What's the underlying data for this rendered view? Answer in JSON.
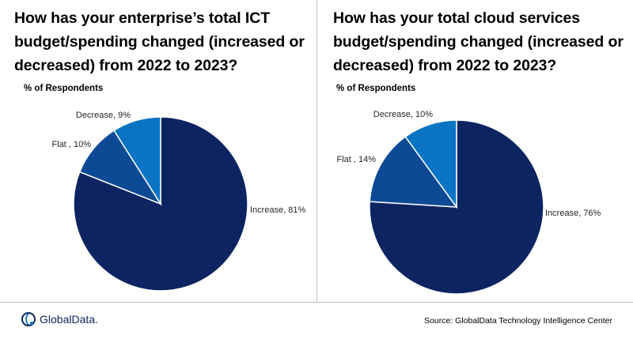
{
  "chart_data": [
    {
      "type": "pie",
      "title": "How has your enterprise’s total ICT budget/spending changed (increased or decreased) from 2022 to 2023?",
      "subtitle": "% of Respondents",
      "categories": [
        "Increase",
        "Flat",
        "Decrease"
      ],
      "values": [
        81,
        10,
        9
      ],
      "labels": [
        "Increase, 81%",
        "Flat , 10%",
        "Decrease, 9%"
      ],
      "colors": [
        "#0c2461",
        "#0d4a96",
        "#0a74c4"
      ]
    },
    {
      "type": "pie",
      "title": "How has your total cloud services budget/spending changed (increased or decreased) from 2022 to 2023?",
      "subtitle": "% of Respondents",
      "categories": [
        "Increase",
        "Flat",
        "Decrease"
      ],
      "values": [
        76,
        14,
        10
      ],
      "labels": [
        "Increase, 76%",
        "Flat , 14%",
        "Decrease, 10%"
      ],
      "colors": [
        "#0c2461",
        "#0d4a96",
        "#0a74c4"
      ]
    }
  ],
  "footer": {
    "logo_text": "GlobalData.",
    "source": "Source: GlobalData Technology Intelligence Center"
  }
}
